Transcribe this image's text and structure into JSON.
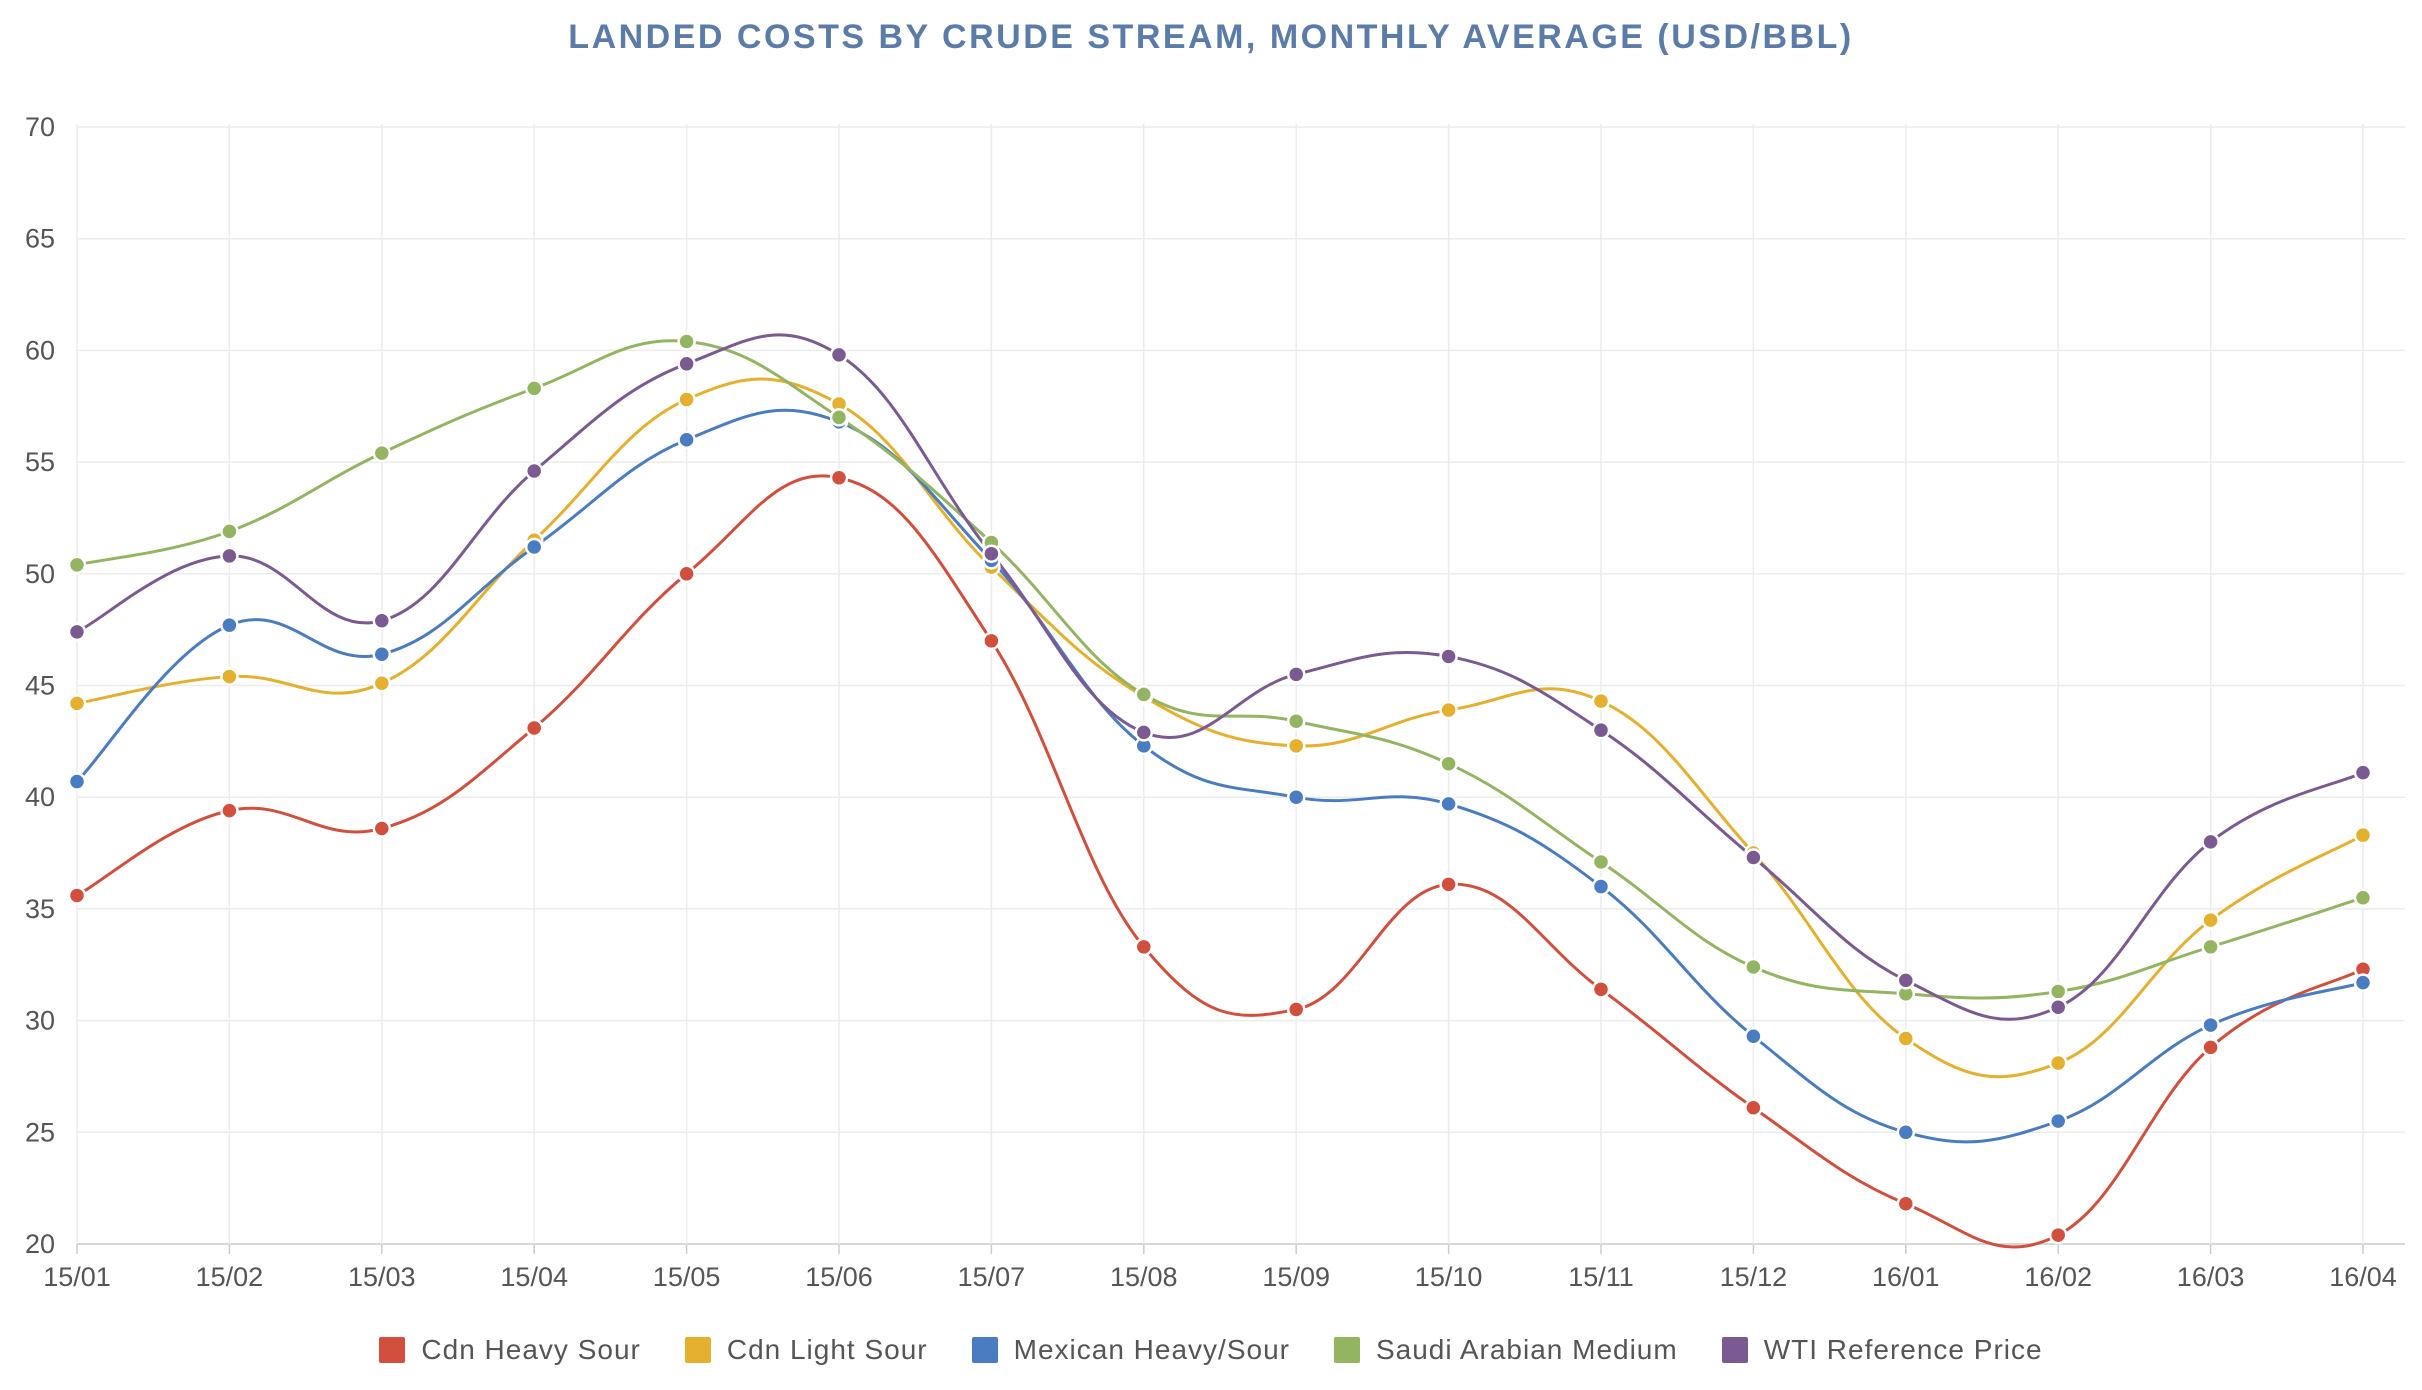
{
  "chart_data": {
    "type": "line",
    "title": "LANDED COSTS BY CRUDE STREAM, MONTHLY AVERAGE (USD/BBL)",
    "xlabel": "",
    "ylabel": "",
    "categories": [
      "15/01",
      "15/02",
      "15/03",
      "15/04",
      "15/05",
      "15/06",
      "15/07",
      "15/08",
      "15/09",
      "15/10",
      "15/11",
      "15/12",
      "16/01",
      "16/02",
      "16/03",
      "16/04"
    ],
    "ylim": [
      20,
      70
    ],
    "yticks": [
      20,
      25,
      30,
      35,
      40,
      45,
      50,
      55,
      60,
      65,
      70
    ],
    "grid": true,
    "smooth": true,
    "legend_position": "bottom",
    "series": [
      {
        "name": "Cdn Heavy Sour",
        "color": "#d14f3c",
        "values": [
          35.6,
          39.4,
          38.6,
          43.1,
          50.0,
          54.3,
          47.0,
          33.3,
          30.5,
          36.1,
          31.4,
          26.1,
          21.8,
          20.4,
          28.8,
          32.3
        ]
      },
      {
        "name": "Cdn Light Sour",
        "color": "#e5b02e",
        "values": [
          44.2,
          45.4,
          45.1,
          51.5,
          57.8,
          57.6,
          50.3,
          44.5,
          42.3,
          43.9,
          44.3,
          37.5,
          29.2,
          28.1,
          34.5,
          38.3
        ]
      },
      {
        "name": "Mexican Heavy/Sour",
        "color": "#4a7cc1",
        "values": [
          40.7,
          47.7,
          46.4,
          51.2,
          56.0,
          56.8,
          50.6,
          42.3,
          40.0,
          39.7,
          36.0,
          29.3,
          25.0,
          25.5,
          29.8,
          31.7
        ]
      },
      {
        "name": "Saudi Arabian Medium",
        "color": "#93b562",
        "values": [
          50.4,
          51.9,
          55.4,
          58.3,
          60.4,
          57.0,
          51.4,
          44.6,
          43.4,
          41.5,
          37.1,
          32.4,
          31.2,
          31.3,
          33.3,
          35.5
        ]
      },
      {
        "name": "WTI Reference Price",
        "color": "#7b5a92",
        "values": [
          47.4,
          50.8,
          47.9,
          54.6,
          59.4,
          59.8,
          50.9,
          42.9,
          45.5,
          46.3,
          43.0,
          37.3,
          31.8,
          30.6,
          38.0,
          41.1
        ]
      }
    ]
  }
}
